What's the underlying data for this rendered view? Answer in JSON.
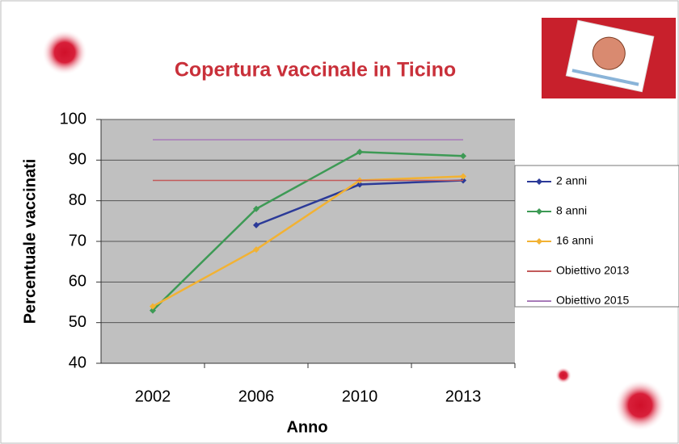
{
  "chart_data": {
    "type": "line",
    "title": "Copertura vaccinale in Ticino",
    "x_label": "Anno",
    "y_label": "Percentuale vaccinati",
    "categories": [
      "2002",
      "2006",
      "2010",
      "2013"
    ],
    "series": [
      {
        "name": "2 anni",
        "color": "#2b3a98",
        "marker": "diamond",
        "values": [
          null,
          74,
          84,
          85
        ]
      },
      {
        "name": "8 anni",
        "color": "#3d9a55",
        "marker": "diamond",
        "values": [
          53,
          78,
          92,
          91
        ]
      },
      {
        "name": "16 anni",
        "color": "#f2b233",
        "marker": "diamond",
        "values": [
          54,
          68,
          85,
          86
        ]
      },
      {
        "name": "Obiettivo 2013",
        "color": "#c25a5a",
        "marker": "none",
        "values": [
          85,
          85,
          85,
          85
        ]
      },
      {
        "name": "Obiettivo 2015",
        "color": "#a77ab8",
        "marker": "none",
        "values": [
          95,
          95,
          95,
          95
        ]
      }
    ],
    "ylim": [
      40,
      100
    ],
    "yticks": [
      40,
      50,
      60,
      70,
      80,
      90,
      100
    ],
    "grid": true,
    "legend": "right"
  }
}
